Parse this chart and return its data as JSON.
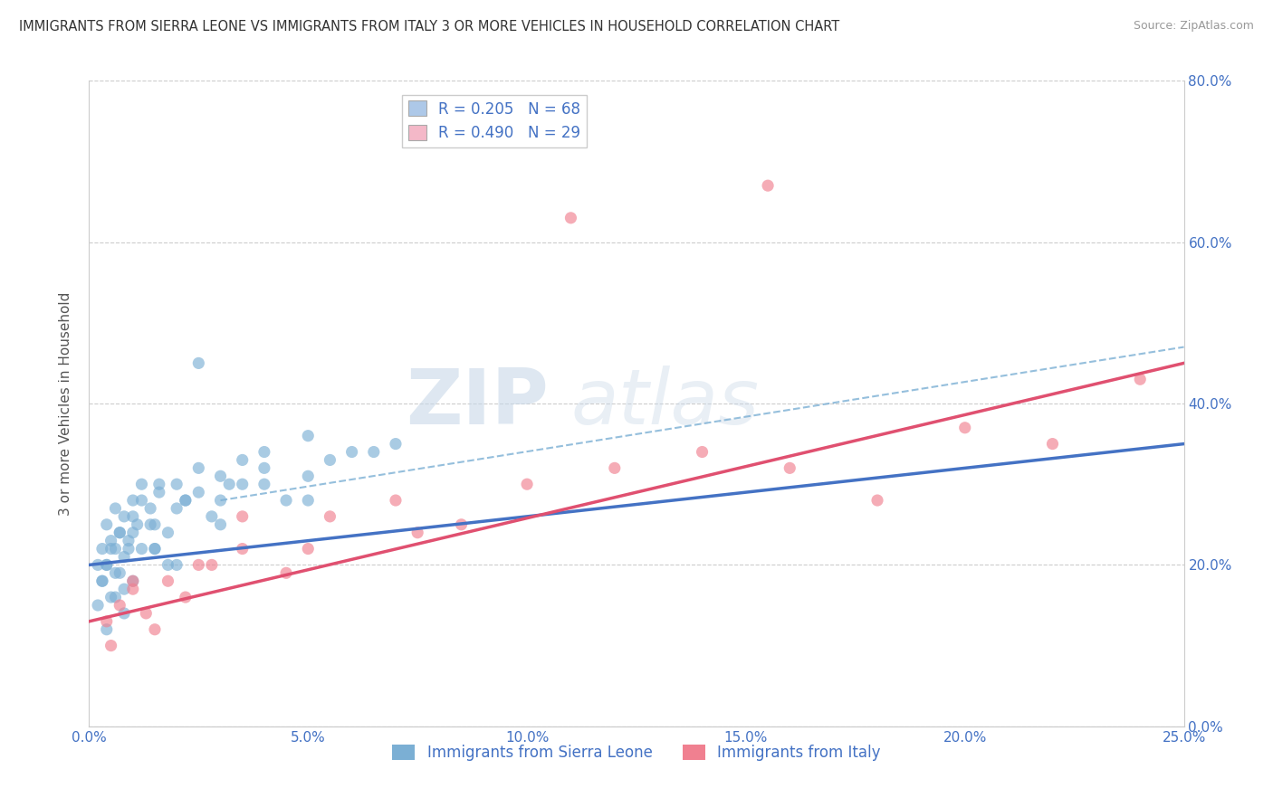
{
  "title": "IMMIGRANTS FROM SIERRA LEONE VS IMMIGRANTS FROM ITALY 3 OR MORE VEHICLES IN HOUSEHOLD CORRELATION CHART",
  "source": "Source: ZipAtlas.com",
  "ylabel": "3 or more Vehicles in Household",
  "xlim": [
    0.0,
    25.0
  ],
  "ylim": [
    0.0,
    80.0
  ],
  "yticks_right": [
    0.0,
    20.0,
    40.0,
    60.0,
    80.0
  ],
  "xticks": [
    0.0,
    5.0,
    10.0,
    15.0,
    20.0,
    25.0
  ],
  "legend1_label_r": "R = 0.205",
  "legend1_label_n": "N = 68",
  "legend2_label_r": "R = 0.490",
  "legend2_label_n": "N = 29",
  "legend1_color": "#adc8e8",
  "legend2_color": "#f4b8c8",
  "scatter1_color": "#7bafd4",
  "scatter2_color": "#f08090",
  "trendline1_color": "#4472c4",
  "trendline2_color": "#e05070",
  "trendline_dash_color": "#7bafd4",
  "background_color": "#ffffff",
  "watermark_zip": "ZIP",
  "watermark_atlas": "atlas",
  "sierra_leone_x": [
    0.2,
    0.3,
    0.4,
    0.5,
    0.6,
    0.7,
    0.8,
    0.9,
    1.0,
    1.1,
    1.2,
    1.4,
    1.5,
    1.6,
    1.8,
    2.0,
    2.2,
    2.5,
    3.0,
    3.5,
    4.0,
    5.0,
    6.0,
    7.0,
    0.3,
    0.4,
    0.5,
    0.6,
    0.7,
    0.8,
    0.9,
    1.0,
    1.2,
    1.4,
    1.6,
    2.0,
    2.5,
    3.0,
    3.5,
    4.0,
    5.0,
    6.5,
    0.2,
    0.3,
    0.4,
    0.5,
    0.6,
    0.7,
    0.8,
    1.0,
    1.2,
    1.5,
    1.8,
    2.2,
    2.8,
    3.2,
    4.5,
    5.5,
    0.4,
    0.6,
    0.8,
    1.0,
    1.5,
    2.0,
    3.0,
    4.0,
    5.0,
    2.5
  ],
  "sierra_leone_y": [
    20,
    22,
    25,
    23,
    27,
    24,
    26,
    22,
    28,
    25,
    30,
    27,
    22,
    29,
    24,
    30,
    28,
    32,
    31,
    33,
    34,
    36,
    34,
    35,
    18,
    20,
    22,
    19,
    24,
    21,
    23,
    26,
    28,
    25,
    30,
    27,
    29,
    28,
    30,
    32,
    31,
    34,
    15,
    18,
    20,
    16,
    22,
    19,
    17,
    24,
    22,
    25,
    20,
    28,
    26,
    30,
    28,
    33,
    12,
    16,
    14,
    18,
    22,
    20,
    25,
    30,
    28,
    45
  ],
  "italy_x": [
    0.4,
    0.7,
    1.0,
    1.3,
    1.8,
    2.2,
    2.8,
    3.5,
    4.5,
    5.5,
    7.0,
    8.5,
    10.0,
    12.0,
    14.0,
    16.0,
    18.0,
    20.0,
    22.0,
    24.0,
    0.5,
    1.0,
    1.5,
    2.5,
    3.5,
    5.0,
    7.5,
    11.0,
    15.5
  ],
  "italy_y": [
    13,
    15,
    17,
    14,
    18,
    16,
    20,
    22,
    19,
    26,
    28,
    25,
    30,
    32,
    34,
    32,
    28,
    37,
    35,
    43,
    10,
    18,
    12,
    20,
    26,
    22,
    24,
    63,
    67
  ],
  "trendline1_x0": 0,
  "trendline1_y0": 20.0,
  "trendline1_x1": 25,
  "trendline1_y1": 35.0,
  "trendline2_x0": 0,
  "trendline2_y0": 13.0,
  "trendline2_x1": 25,
  "trendline2_y1": 45.0,
  "trendline_dash_x0": 3,
  "trendline_dash_y0": 28.0,
  "trendline_dash_x1": 25,
  "trendline_dash_y1": 47.0
}
